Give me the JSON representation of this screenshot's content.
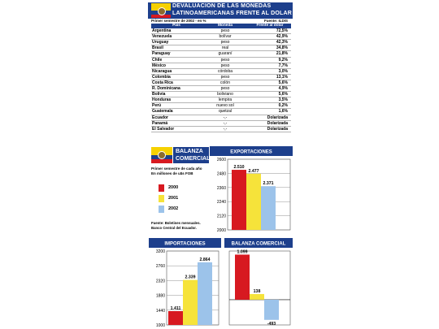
{
  "header": {
    "title_line1": "DEVALUACION DE LAS MONEDAS",
    "title_line2": "LATINOAMERICANAS FRENTE AL DOLAR",
    "subtitle": "Primer semestre de 2002 - en %",
    "source": "Fuente: ILDIS"
  },
  "table": {
    "headers": [
      "País",
      "Moneda",
      "Frente al dólar"
    ],
    "rows": [
      {
        "country": "Argentina",
        "currency": "peso",
        "value": "72,5%"
      },
      {
        "country": "Venezuela",
        "currency": "bolívar",
        "value": "42,9%"
      },
      {
        "country": "Uruguay",
        "currency": "peso",
        "value": "42,3%"
      },
      {
        "country": "Brasil",
        "currency": "real",
        "value": "34,8%"
      },
      {
        "country": "Paraguay",
        "currency": "guaraní",
        "value": "21,8%"
      },
      {
        "country": "Chile",
        "currency": "peso",
        "value": "9,2%"
      },
      {
        "country": "México",
        "currency": "peso",
        "value": "7,7%"
      },
      {
        "country": "Nicaragua",
        "currency": "córdoba",
        "value": "3,0%"
      },
      {
        "country": "Colombia",
        "currency": "peso",
        "value": "13,1%"
      },
      {
        "country": "Costa Rica",
        "currency": "colón",
        "value": "5,6%"
      },
      {
        "country": "R. Dominicana",
        "currency": "peso",
        "value": "4,9%"
      },
      {
        "country": "Bolivia",
        "currency": "boliviano",
        "value": "5,6%"
      },
      {
        "country": "Honduras",
        "currency": "lempira",
        "value": "3,5%"
      },
      {
        "country": "Perú",
        "currency": "nuevo sol",
        "value": "0,2%"
      },
      {
        "country": "Guatemala",
        "currency": "quetzal",
        "value": "1,6%"
      },
      {
        "country": "Ecuador",
        "currency": "-,-",
        "value": "Dolarizada"
      },
      {
        "country": "Panamá",
        "currency": "-,-",
        "value": "Dolarizada"
      },
      {
        "country": "El Salvador",
        "currency": "-,-",
        "value": "Dolarizada"
      }
    ]
  },
  "balanza": {
    "title_line1": "BALANZA",
    "title_line2": "COMERCIAL",
    "note_line1": "Primer semestre de cada año",
    "note_line2": "En millones de u$s FOB",
    "source_line1": "Fuente: Boletines mensuales.",
    "source_line2": "Banco Central del Ecuador."
  },
  "colors": {
    "y2000": "#d71920",
    "y2001": "#f6e33a",
    "y2002": "#9cc3ea",
    "brand": "#1d3f8c"
  },
  "chart_data": [
    {
      "type": "bar",
      "title": "EXPORTACIONES",
      "categories": [
        "2000",
        "2001",
        "2002"
      ],
      "values": [
        2510,
        2477,
        2371
      ],
      "value_labels": [
        "2.510",
        "2.477",
        "2.371"
      ],
      "yticks": [
        "2600",
        "2480",
        "2360",
        "2240",
        "2120",
        "2000"
      ],
      "ylim": [
        2000,
        2600
      ],
      "legend": [
        "2000",
        "2001",
        "2002"
      ],
      "legend_placement": "left"
    },
    {
      "type": "bar",
      "title": "IMPORTACIONES",
      "categories": [
        "2000",
        "2001",
        "2002"
      ],
      "values": [
        1411,
        2339,
        2864
      ],
      "value_labels": [
        "1.411",
        "2.339",
        "2.864"
      ],
      "yticks": [
        "3200",
        "2760",
        "2320",
        "1880",
        "1440",
        "1000"
      ],
      "ylim": [
        1000,
        3200
      ]
    },
    {
      "type": "bar",
      "title": "BALANZA COMERCIAL",
      "categories": [
        "2000",
        "2001",
        "2002"
      ],
      "values": [
        1099,
        138,
        -493
      ],
      "value_labels": [
        "1.099",
        "138",
        "-493"
      ]
    }
  ]
}
